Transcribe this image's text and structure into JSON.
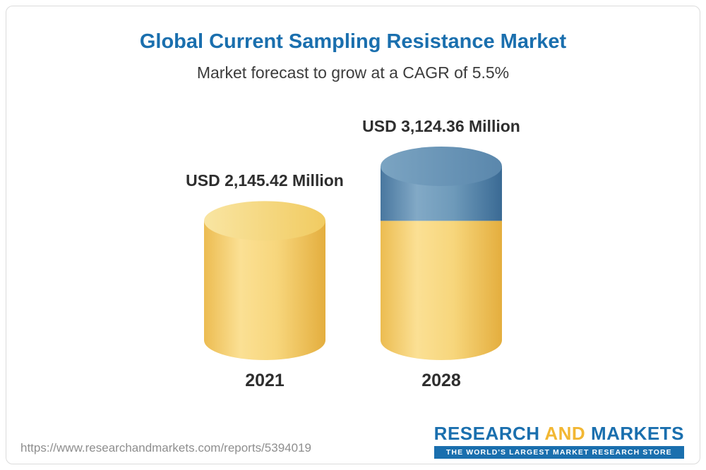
{
  "chart_data": {
    "type": "bar",
    "variant": "3d-cylinder",
    "title": "Global Current Sampling Resistance Market",
    "subtitle": "Market forecast to grow at a CAGR of 5.5%",
    "xlabel": "",
    "ylabel": "",
    "ylim": [
      0,
      3300
    ],
    "grid": false,
    "legend": false,
    "categories": [
      "2021",
      "2028"
    ],
    "values": [
      2145.42,
      3124.36
    ],
    "value_labels": [
      "USD 2,145.42 Million",
      "USD 3,124.36 Million"
    ],
    "segments": [
      [
        {
          "value": 2145.42,
          "color_key": "yellow"
        }
      ],
      [
        {
          "value": 2145.42,
          "color_key": "yellow"
        },
        {
          "value": 978.94,
          "color_key": "blue"
        }
      ]
    ],
    "colors": {
      "yellow": "#F5C95B",
      "blue": "#4E80A7"
    }
  },
  "footer": {
    "url": "https://www.researchandmarkets.com/reports/5394019",
    "logo": {
      "word1": "RESEARCH",
      "word2": "AND",
      "word3": "MARKETS",
      "tagline": "THE WORLD'S LARGEST MARKET RESEARCH STORE"
    }
  }
}
